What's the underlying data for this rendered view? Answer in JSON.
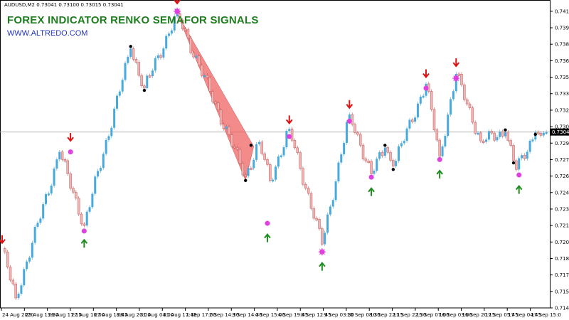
{
  "chart_data": {
    "type": "candlestick",
    "symbol_label": "AUDUSD,M2  0.73041 0.73100 0.73015 0.73041",
    "title": "FOREX INDICATOR RENKO SEMAFOR SIGNALS",
    "subtitle": "WWW.ALTREDO.COM",
    "current_price": "0.73041",
    "ylim": [
      0.7144,
      0.74165
    ],
    "y_ticks": [
      "0.74140",
      "0.73990",
      "0.73840",
      "0.73690",
      "0.73540",
      "0.73390",
      "0.73240",
      "0.73090",
      "0.72940",
      "0.72790",
      "0.72640",
      "0.72490",
      "0.72340",
      "0.72190",
      "0.72040",
      "0.71890",
      "0.71740",
      "0.71590",
      "0.71440"
    ],
    "x_ticks": [
      "24 Aug 2020",
      "25 Aug 13:30",
      "26 Aug 17:15",
      "27 Aug 16:00",
      "27 Aug 18:45",
      "28 Aug 20:00",
      "31 Aug 04:00",
      "31 Aug 17:45",
      "1 Sep 17:00",
      "2 Sep 14:30",
      "3 Sep 14:30",
      "4 Sep 15:00",
      "4 Sep 19:45",
      "8 Sep 12:45",
      "9 Sep 03:30",
      "10 Sep 08:30",
      "10 Sep 22:15",
      "11 Sep 22:30",
      "15 Sep 07:00",
      "16 Sep 03:00",
      "16 Sep 20:15",
      "17 Sep 05:45",
      "17 Sep 04:45",
      "17 Sep 15:0"
    ],
    "colors": {
      "up": "#48a9dc",
      "down": "#f0b4b4",
      "down_edge": "#c05a5a",
      "dot_pink": "#e040e0",
      "dot_black": "#000000",
      "arrow_up": "#1e8c1e",
      "arrow_down": "#dd1111",
      "triangle": "#ee5a5a",
      "current_line": "#b4b4b4"
    },
    "pivots": [
      {
        "i": 0,
        "price": 0.7198
      },
      {
        "i": 5,
        "price": 0.7153
      },
      {
        "i": 21,
        "price": 0.7286
      },
      {
        "i": 30,
        "price": 0.7219
      },
      {
        "i": 47,
        "price": 0.738
      },
      {
        "i": 52,
        "price": 0.7344
      },
      {
        "i": 64,
        "price": 0.7412
      },
      {
        "i": 89,
        "price": 0.7264
      },
      {
        "i": 94,
        "price": 0.7295
      },
      {
        "i": 98,
        "price": 0.726
      },
      {
        "i": 105,
        "price": 0.7307
      },
      {
        "i": 117,
        "price": 0.7202
      },
      {
        "i": 127,
        "price": 0.732
      },
      {
        "i": 135,
        "price": 0.7266
      },
      {
        "i": 140,
        "price": 0.729
      },
      {
        "i": 143,
        "price": 0.7273
      },
      {
        "i": 155,
        "price": 0.7348
      },
      {
        "i": 160,
        "price": 0.7282
      },
      {
        "i": 166,
        "price": 0.7357
      },
      {
        "i": 175,
        "price": 0.7296
      },
      {
        "i": 184,
        "price": 0.7304
      },
      {
        "i": 188,
        "price": 0.727
      },
      {
        "i": 195,
        "price": 0.7304
      }
    ],
    "markers": [
      {
        "type": "arrow_down",
        "i": 0,
        "price": 0.7205
      },
      {
        "type": "arrow_down",
        "i": 25,
        "price": 0.7298
      },
      {
        "type": "dot",
        "color": "pink",
        "i": 25,
        "price": 0.7286
      },
      {
        "type": "dot",
        "color": "pink",
        "i": 30,
        "price": 0.7214
      },
      {
        "type": "arrow_up",
        "i": 30,
        "price": 0.7204
      },
      {
        "type": "dot",
        "color": "black",
        "i": 47,
        "price": 0.7382
      },
      {
        "type": "dot",
        "color": "black",
        "i": 52,
        "price": 0.7342
      },
      {
        "type": "arrow_down",
        "i": 64,
        "price": 0.7423
      },
      {
        "type": "star",
        "color": "pink",
        "i": 64,
        "price": 0.7414
      },
      {
        "type": "dot",
        "color": "black",
        "i": 91,
        "price": 0.7292
      },
      {
        "type": "dot",
        "color": "black",
        "i": 89,
        "price": 0.726
      },
      {
        "type": "dot",
        "color": "pink",
        "i": 97,
        "price": 0.7221
      },
      {
        "type": "arrow_up",
        "i": 97,
        "price": 0.7209
      },
      {
        "type": "arrow_down",
        "i": 105,
        "price": 0.7314
      },
      {
        "type": "dot",
        "color": "pink",
        "i": 105,
        "price": 0.73
      },
      {
        "type": "star",
        "color": "pink",
        "i": 117,
        "price": 0.7195
      },
      {
        "type": "arrow_up",
        "i": 117,
        "price": 0.7183
      },
      {
        "type": "arrow_down",
        "i": 127,
        "price": 0.7328
      },
      {
        "type": "dot",
        "color": "pink",
        "i": 127,
        "price": 0.7314
      },
      {
        "type": "dot",
        "color": "pink",
        "i": 135,
        "price": 0.7263
      },
      {
        "type": "arrow_up",
        "i": 135,
        "price": 0.7251
      },
      {
        "type": "dot",
        "color": "black",
        "i": 140,
        "price": 0.7292
      },
      {
        "type": "dot",
        "color": "black",
        "i": 143,
        "price": 0.727
      },
      {
        "type": "arrow_down",
        "i": 155,
        "price": 0.7356
      },
      {
        "type": "dot",
        "color": "pink",
        "i": 155,
        "price": 0.7344
      },
      {
        "type": "dot",
        "color": "pink",
        "i": 160,
        "price": 0.7279
      },
      {
        "type": "arrow_up",
        "i": 160,
        "price": 0.7267
      },
      {
        "type": "arrow_down",
        "i": 166,
        "price": 0.7366
      },
      {
        "type": "star",
        "color": "pink",
        "i": 166,
        "price": 0.7353
      },
      {
        "type": "dot",
        "color": "black",
        "i": 184,
        "price": 0.7306
      },
      {
        "type": "dot",
        "color": "black",
        "i": 187,
        "price": 0.7276
      },
      {
        "type": "dot",
        "color": "pink",
        "i": 189,
        "price": 0.7265
      },
      {
        "type": "arrow_up",
        "i": 189,
        "price": 0.7253
      },
      {
        "type": "dot",
        "color": "black",
        "i": 195,
        "price": 0.7302
      }
    ],
    "triangle": {
      "top_i": 64,
      "top_price": 0.7412,
      "right_i": 92,
      "right_price": 0.7291,
      "bottom_i": 89,
      "bottom_price": 0.726
    }
  }
}
